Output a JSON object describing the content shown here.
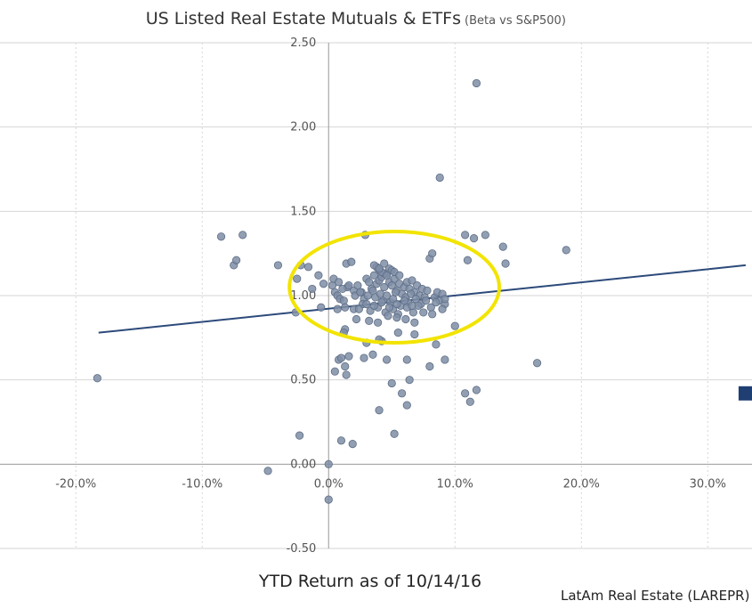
{
  "chart_data": {
    "type": "scatter",
    "title": "US Listed Real Estate Mutuals & ETFs",
    "subtitle": "(Beta vs S&P500)",
    "xlabel": "YTD Return as of 10/14/16",
    "ylabel": "",
    "source": "LatAm Real Estate (LAREPR)",
    "xlim": [
      -26.0,
      33.5
    ],
    "ylim": [
      -0.5,
      2.5
    ],
    "x_ticks": [
      -20,
      -10,
      0,
      10,
      20,
      30
    ],
    "x_tick_labels": [
      "-20.0%",
      "-10.0%",
      "0.0%",
      "10.0%",
      "20.0%",
      "30.0%"
    ],
    "y_ticks": [
      -0.5,
      0,
      0.5,
      1.0,
      1.5,
      2.0,
      2.5
    ],
    "y_tick_labels": [
      "-0.50",
      "0.00",
      "0.50",
      "1.00",
      "1.50",
      "2.00",
      "2.50"
    ],
    "grid": true,
    "legend": "none",
    "colors": {
      "points": "#7f8ea6",
      "point_stroke": "#5d6d86",
      "trendline": "#2c4a7a",
      "highlight": "#1f3f73",
      "ellipse": "#f2e400",
      "grid": "#d6d6d6",
      "axis": "#999999"
    },
    "highlight_point": {
      "name": "LatAm Real Estate (LAREPR)",
      "x": 33.0,
      "y": 0.42
    },
    "trendline": {
      "x": [
        -18.2,
        33.0
      ],
      "y": [
        0.78,
        1.18
      ]
    },
    "highlight_ellipse": {
      "cx": 5.2,
      "cy": 1.05,
      "rx": 8.3,
      "ry": 0.33
    },
    "series": [
      {
        "x": [
          -18.3,
          -8.5,
          -6.8,
          -7.5,
          -7.3,
          -4.0,
          -2.2,
          -2.5,
          -1.6,
          -0.8,
          -1.3,
          -2.6,
          -0.6,
          -4.8,
          0.0,
          0.0,
          -2.3,
          1.0,
          0.8,
          1.6,
          1.3,
          3.0,
          4.2,
          1.9,
          2.9,
          1.4,
          1.8,
          -0.4,
          0.3,
          0.5,
          0.7,
          0.9,
          1.2,
          1.5,
          2.0,
          2.3,
          2.6,
          3.0,
          3.2,
          3.4,
          3.6,
          3.8,
          4.0,
          4.2,
          4.4,
          4.6,
          4.8,
          5.0,
          5.2,
          5.4,
          5.6,
          5.8,
          6.0,
          6.2,
          6.4,
          6.6,
          6.8,
          7.0,
          7.2,
          7.4,
          7.6,
          7.8,
          8.0,
          8.2,
          8.4,
          8.6,
          8.8,
          9.0,
          9.2,
          0.4,
          0.8,
          1.1,
          1.6,
          2.1,
          2.5,
          2.8,
          3.1,
          3.5,
          3.7,
          4.1,
          4.3,
          4.6,
          4.9,
          5.1,
          5.3,
          5.7,
          6.1,
          6.3,
          6.5,
          6.9,
          7.3,
          7.7,
          8.1,
          8.5,
          9.2,
          2.0,
          2.7,
          3.3,
          3.9,
          4.5,
          5.1,
          5.5,
          6.2,
          6.7,
          7.1,
          0.7,
          1.3,
          2.4,
          3.0,
          3.6,
          4.2,
          4.8,
          5.4,
          6.0,
          6.6,
          4.0,
          4.4,
          4.8,
          3.8,
          4.2,
          4.6,
          5.0,
          3.6,
          4.0,
          4.4,
          5.2,
          5.6,
          1.3,
          2.2,
          3.2,
          3.9,
          4.7,
          5.4,
          6.1,
          6.8,
          7.5,
          8.2,
          9.0,
          10.0,
          1.2,
          4.0,
          5.5,
          6.8,
          8.5,
          3.5,
          1.0,
          1.4,
          2.8,
          4.6,
          6.2,
          0.5,
          5.0,
          6.4,
          8.0,
          9.2,
          5.8,
          4.0,
          6.2,
          10.8,
          11.2,
          11.7,
          13.8,
          14.0,
          12.4,
          18.8,
          16.5,
          10.8,
          11.5,
          11.0,
          5.2,
          8.8,
          11.7
        ],
        "y": [
          0.51,
          1.35,
          1.36,
          1.18,
          1.21,
          1.18,
          1.18,
          1.1,
          1.17,
          1.12,
          1.04,
          0.9,
          0.93,
          -0.04,
          0.0,
          -0.21,
          0.17,
          0.14,
          0.62,
          0.64,
          0.58,
          0.72,
          0.73,
          0.12,
          1.36,
          1.19,
          1.2,
          1.07,
          1.06,
          1.02,
          1.0,
          0.98,
          0.97,
          1.05,
          1.03,
          1.06,
          1.02,
          1.1,
          1.08,
          1.04,
          1.12,
          1.07,
          1.09,
          1.11,
          1.05,
          1.13,
          1.08,
          1.06,
          1.1,
          1.03,
          1.07,
          1.01,
          1.05,
          1.08,
          1.04,
          1.09,
          1.02,
          1.06,
          1.0,
          1.04,
          0.99,
          1.03,
          1.22,
          1.25,
          0.99,
          1.02,
          0.97,
          1.01,
          0.95,
          1.1,
          1.08,
          1.04,
          1.06,
          1.0,
          1.02,
          0.98,
          1.0,
          1.03,
          0.99,
          1.01,
          0.97,
          1.0,
          0.96,
          0.98,
          1.02,
          0.94,
          0.99,
          0.96,
          1.01,
          0.98,
          0.95,
          0.97,
          0.93,
          0.96,
          0.98,
          0.92,
          0.95,
          0.91,
          0.93,
          0.9,
          0.92,
          0.89,
          0.93,
          0.9,
          0.94,
          0.92,
          0.93,
          0.92,
          0.95,
          0.94,
          0.96,
          0.93,
          0.95,
          0.97,
          0.94,
          1.15,
          1.13,
          1.16,
          1.17,
          1.14,
          1.12,
          1.15,
          1.18,
          1.16,
          1.19,
          1.14,
          1.12,
          0.8,
          0.86,
          0.85,
          0.84,
          0.88,
          0.87,
          0.86,
          0.84,
          0.9,
          0.89,
          0.92,
          0.82,
          0.78,
          0.74,
          0.78,
          0.77,
          0.71,
          0.65,
          0.63,
          0.53,
          0.63,
          0.62,
          0.62,
          0.55,
          0.48,
          0.5,
          0.58,
          0.62,
          0.42,
          0.32,
          0.35,
          0.42,
          0.37,
          0.44,
          1.29,
          1.19,
          1.36,
          1.27,
          0.6,
          1.36,
          1.34,
          1.21,
          0.18,
          1.7,
          2.26
        ]
      }
    ]
  }
}
